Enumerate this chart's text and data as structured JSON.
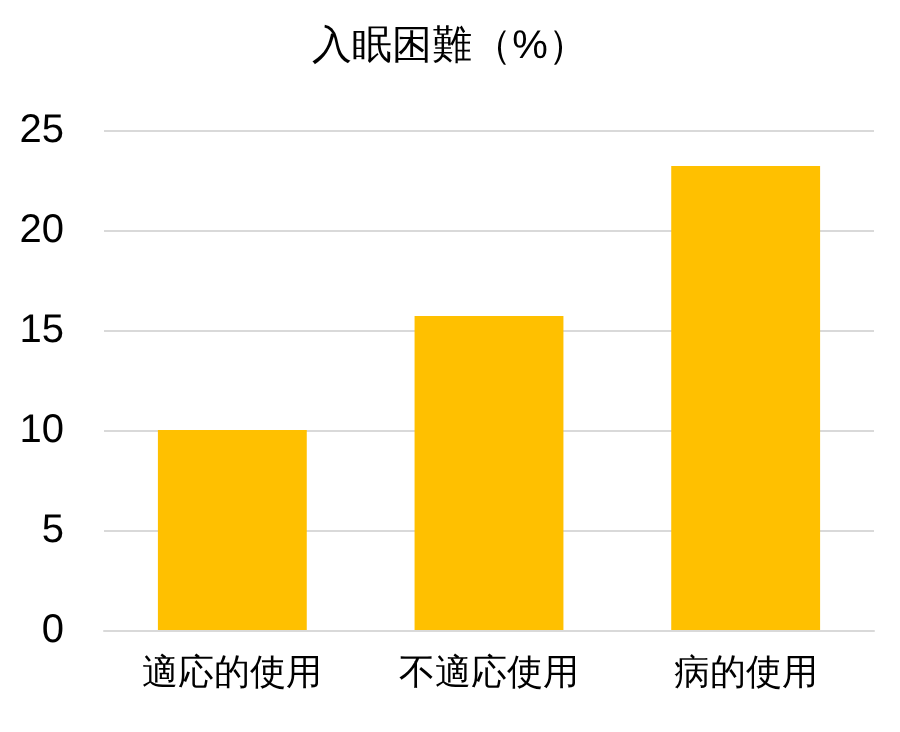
{
  "chart_data": {
    "type": "bar",
    "title": "入眠困難（%）",
    "categories": [
      "適応的使用",
      "不適応使用",
      "病的使用"
    ],
    "values": [
      10.0,
      15.7,
      23.2
    ],
    "color": "#ffc000",
    "ylim": [
      0,
      25
    ],
    "yticks": [
      0,
      5,
      10,
      15,
      20,
      25
    ],
    "grid": "y"
  }
}
